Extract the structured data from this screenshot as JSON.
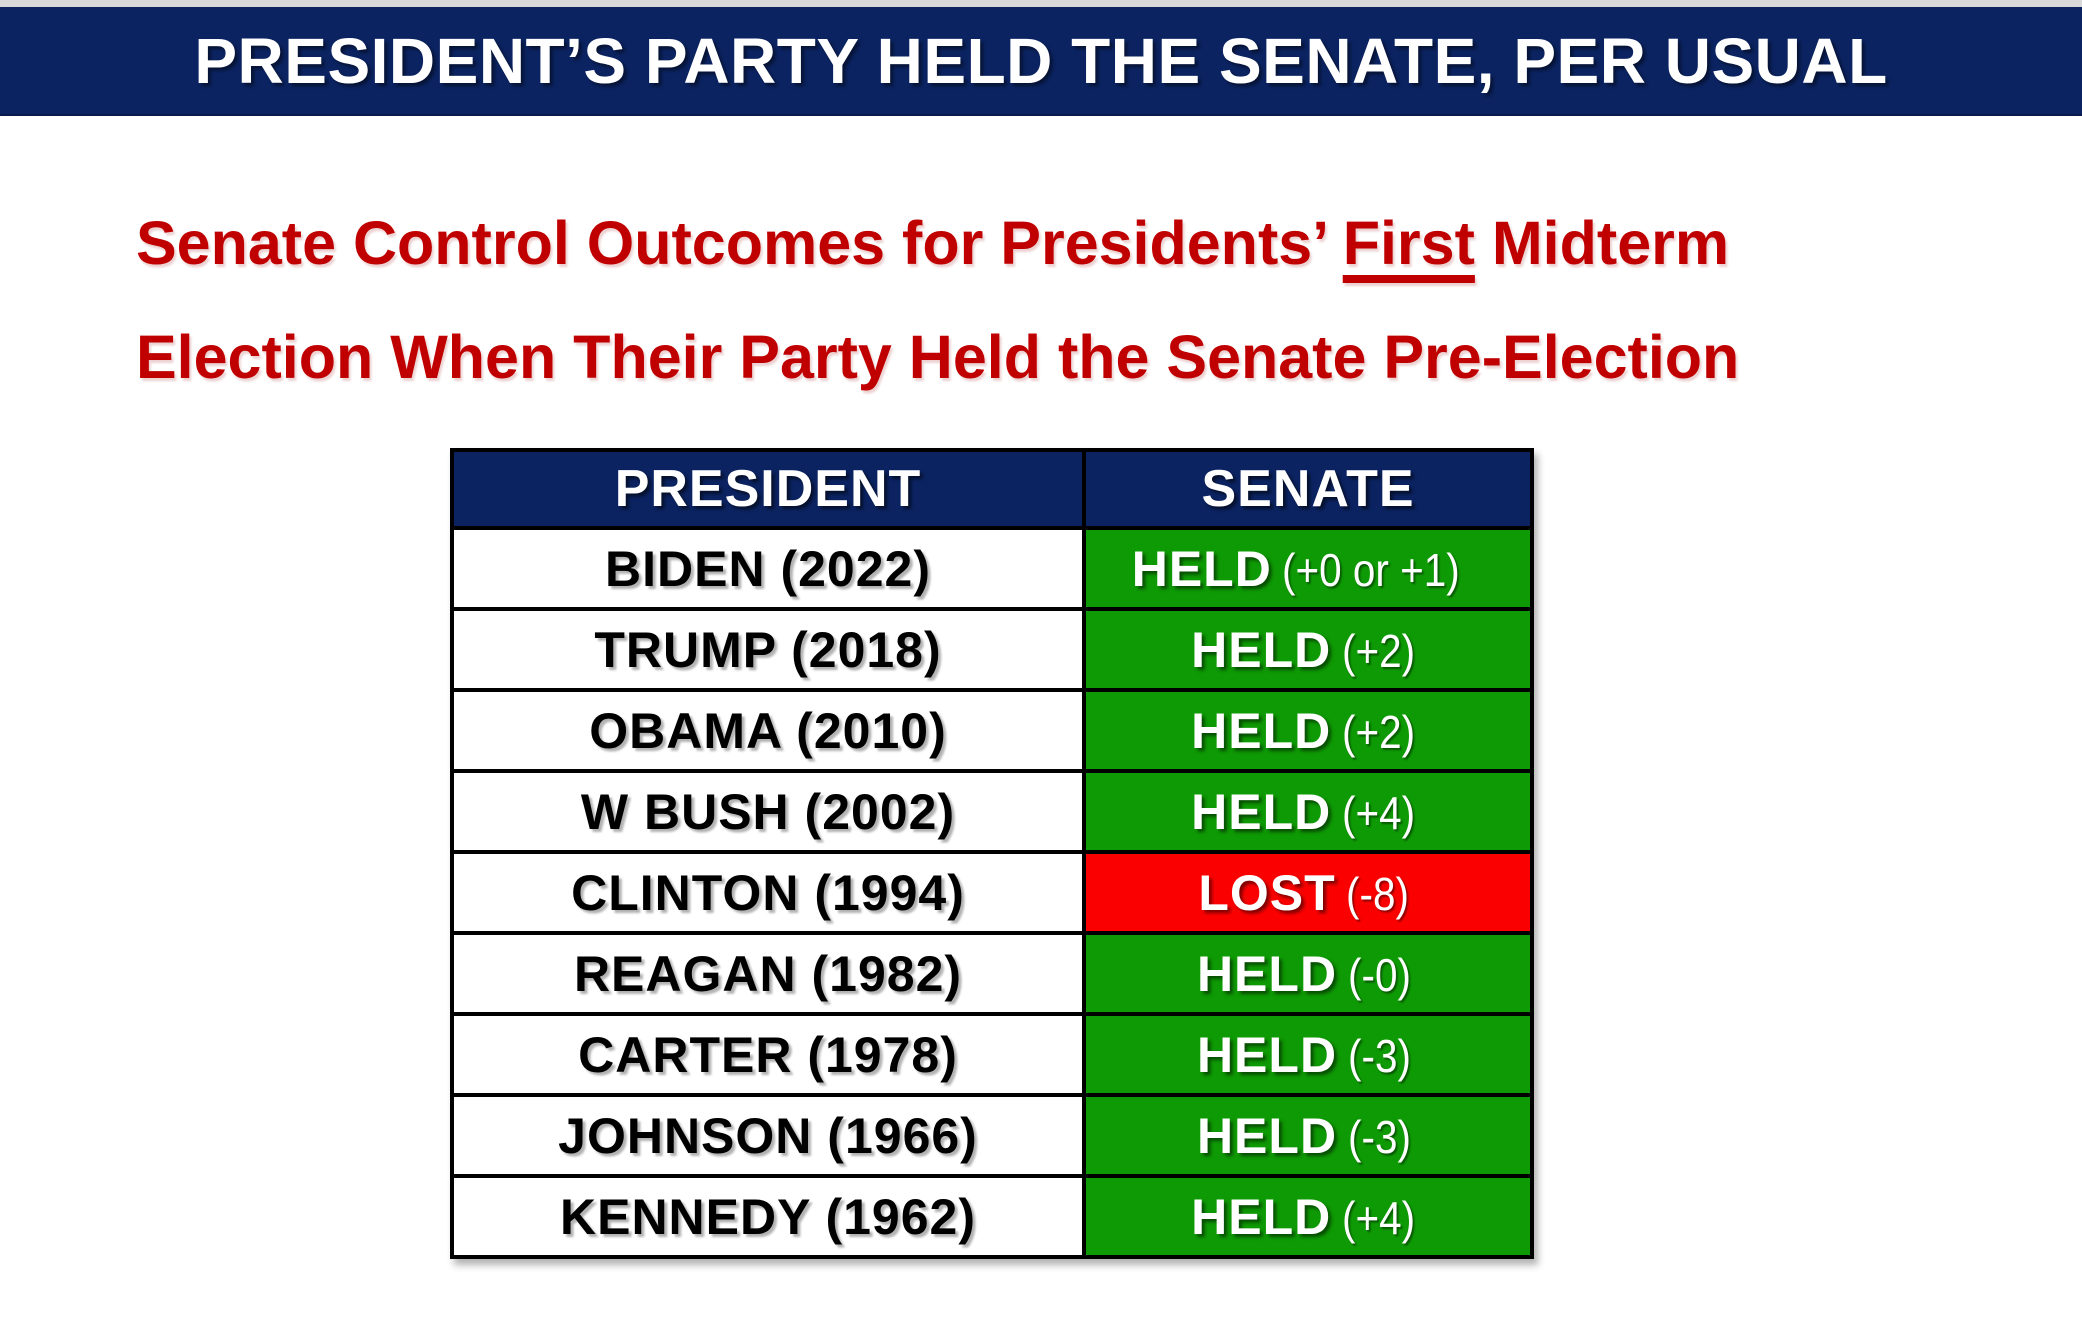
{
  "slide": {
    "background_color": "#ffffff",
    "top_strip_color": "#d9d9d9"
  },
  "header": {
    "title": "PRESIDENT’S PARTY HELD THE SENATE, PER USUAL",
    "bg_color": "#0b2361",
    "text_color": "#ffffff"
  },
  "subtitle": {
    "line1_pre": "Senate Control Outcomes for Presidents’ ",
    "line1_underlined": "First",
    "line1_post": " Midterm",
    "line2": "Election When Their Party Held the Senate Pre-Election",
    "color": "#c00000"
  },
  "chart_data": {
    "type": "table",
    "title": "PRESIDENT’S PARTY HELD THE SENATE, PER USUAL",
    "subtitle": "Senate Control Outcomes for Presidents’ First Midterm Election When Their Party Held the Senate Pre-Election",
    "columns": [
      "PRESIDENT",
      "SENATE"
    ],
    "status_colors": {
      "held_bg": "#0e9a04",
      "lost_bg": "#fb0000",
      "header_bg": "#0b2361"
    },
    "rows": [
      {
        "president": "BIDEN (2022)",
        "result": "HELD",
        "detail": "(+0 or +1)",
        "status": "held"
      },
      {
        "president": "TRUMP (2018)",
        "result": "HELD",
        "detail": "(+2)",
        "status": "held"
      },
      {
        "president": "OBAMA (2010)",
        "result": "HELD",
        "detail": "(+2)",
        "status": "held"
      },
      {
        "president": "W BUSH (2002)",
        "result": "HELD",
        "detail": "(+4)",
        "status": "held"
      },
      {
        "president": "CLINTON (1994)",
        "result": "LOST",
        "detail": "(-8)",
        "status": "lost"
      },
      {
        "president": "REAGAN (1982)",
        "result": "HELD",
        "detail": "(-0)",
        "status": "held"
      },
      {
        "president": "CARTER (1978)",
        "result": "HELD",
        "detail": "(-3)",
        "status": "held"
      },
      {
        "president": "JOHNSON (1966)",
        "result": "HELD",
        "detail": "(-3)",
        "status": "held"
      },
      {
        "president": "KENNEDY (1962)",
        "result": "HELD",
        "detail": "(+4)",
        "status": "held"
      }
    ]
  }
}
